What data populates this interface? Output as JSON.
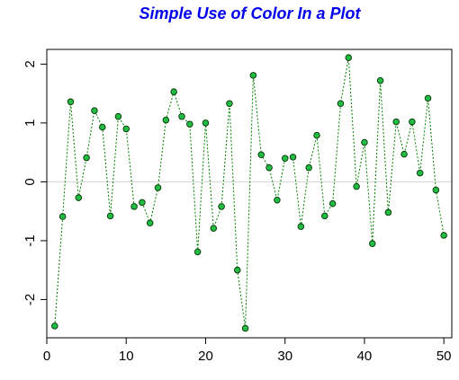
{
  "chart_data": {
    "type": "line",
    "title": "Simple Use of Color In a Plot",
    "xlabel": "",
    "ylabel": "",
    "xlim": [
      0,
      51
    ],
    "ylim": [
      -2.65,
      2.25
    ],
    "x_ticks": [
      0,
      10,
      20,
      30,
      40,
      50
    ],
    "y_ticks": [
      -2,
      -1,
      0,
      1,
      2
    ],
    "x_tick_labels": [
      "0",
      "10",
      "20",
      "30",
      "40",
      "50"
    ],
    "y_tick_labels": [
      "-2",
      "-1",
      "0",
      "1",
      "2"
    ],
    "reference_line_y": 0,
    "grid": false,
    "legend": "none",
    "series": [
      {
        "x": [
          1,
          2,
          3,
          4,
          5,
          6,
          7,
          8,
          9,
          10,
          11,
          12,
          13,
          14,
          15,
          16,
          17,
          18,
          19,
          20,
          21,
          22,
          23,
          24,
          25,
          26,
          27,
          28,
          29,
          30,
          31,
          32,
          33,
          34,
          35,
          36,
          37,
          38,
          39,
          40,
          41,
          42,
          43,
          44,
          45,
          46,
          47,
          48,
          49,
          50
        ],
        "values": [
          -2.45,
          -0.59,
          1.36,
          -0.27,
          0.41,
          1.21,
          0.93,
          -0.58,
          1.11,
          0.9,
          -0.42,
          -0.35,
          -0.7,
          -0.1,
          1.05,
          1.53,
          1.11,
          0.98,
          -1.19,
          1.0,
          -0.79,
          -0.42,
          1.33,
          -1.5,
          -2.49,
          1.81,
          0.46,
          0.24,
          -0.31,
          0.4,
          0.42,
          -0.76,
          0.24,
          0.79,
          -0.58,
          -0.37,
          1.33,
          2.11,
          -0.08,
          0.67,
          -1.05,
          1.72,
          -0.52,
          1.02,
          0.47,
          1.02,
          0.15,
          1.42,
          -0.14,
          -0.91
        ]
      }
    ],
    "colors": {
      "title": "#0000ee",
      "line": "#008000",
      "marker_fill": "#22bb44",
      "marker_edge": "#003300",
      "reference_line": "#d3d3d3",
      "axes": "#000000"
    }
  }
}
